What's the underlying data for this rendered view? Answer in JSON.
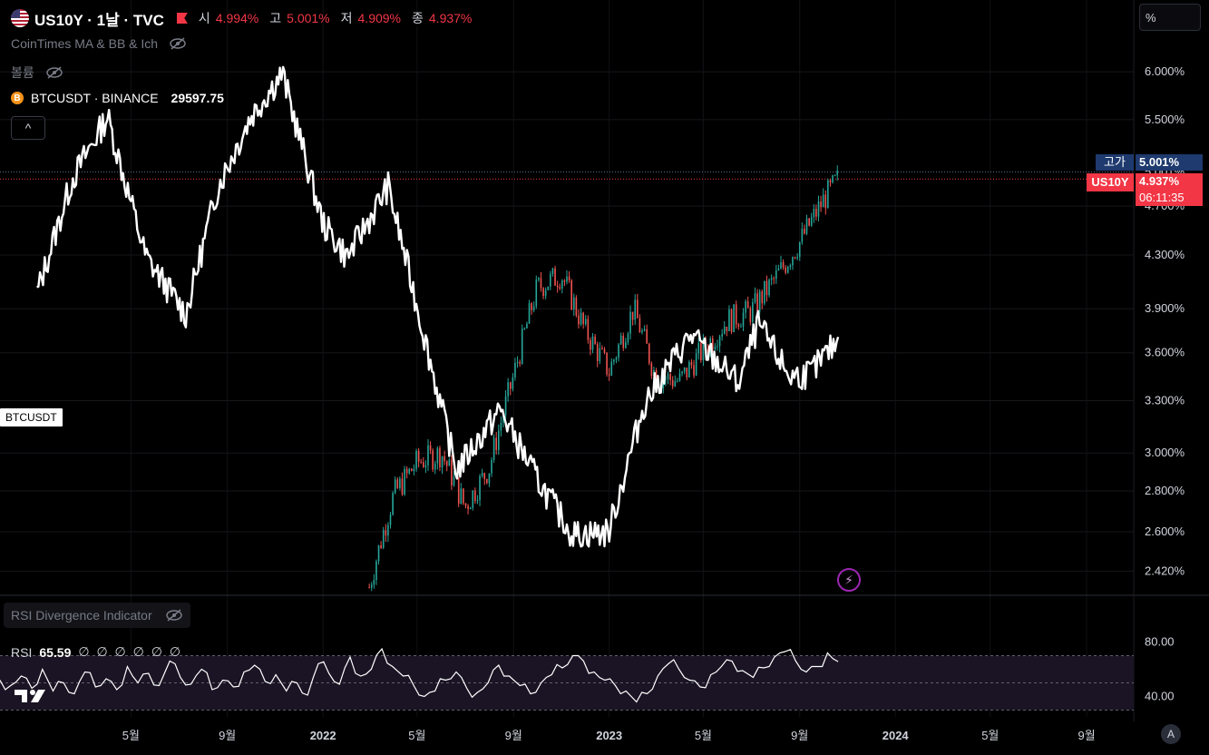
{
  "header": {
    "symbol_line": "US10Y · 1날 · TVC",
    "ohlc": [
      {
        "label": "시",
        "value": "4.994%"
      },
      {
        "label": "고",
        "value": "5.001%"
      },
      {
        "label": "저",
        "value": "4.909%"
      },
      {
        "label": "종",
        "value": "4.937%"
      }
    ]
  },
  "indicators": {
    "ma_bb_ich": "CoinTimes MA & BB & Ich",
    "volume": "볼륨",
    "rsi_div": "RSI Divergence Indicator"
  },
  "compare": {
    "icon": "B",
    "name": "BTCUSDT · BINANCE",
    "value": "29597.75",
    "line_label": "BTCUSDT"
  },
  "collapse": "^",
  "scale_mode": "%",
  "price_axis_labels": [
    "6.000%",
    "5.500%",
    "5.001%",
    "4.937%",
    "4.700%",
    "4.300%",
    "3.900%",
    "3.600%",
    "3.300%",
    "3.000%",
    "2.800%",
    "2.600%",
    "2.420%"
  ],
  "tags": {
    "high_label": "고가",
    "high_value": "5.001%",
    "symbol_tag": "US10Y",
    "last_value": "4.937%",
    "countdown": "06:11:35"
  },
  "rsi": {
    "name": "RSI",
    "value": "65.59",
    "na": "∅ ∅ ∅ ∅ ∅ ∅",
    "axis_labels": [
      "80.00",
      "40.00"
    ]
  },
  "time_axis_labels": [
    "5월",
    "9월",
    "2022",
    "5월",
    "9월",
    "2023",
    "5월",
    "9월",
    "2024",
    "5월",
    "9월"
  ],
  "auto_btn": "A",
  "colors": {
    "up": "#26a69a",
    "down": "#ef5350",
    "btc_line": "#ffffff",
    "last_price": "#f23645",
    "high_tag": "#1e3a6e",
    "rsi_band": "#1a1424"
  },
  "chart_data": [
    {
      "type": "line",
      "title": "US10Y · 1날 · TVC",
      "y_unit": "%",
      "y_scale": "log",
      "ylim": [
        2.32,
        6.4
      ],
      "series_us10y": {
        "name": "US10Y",
        "type": "candlestick",
        "x": [
          "2022-03-01",
          "2022-04-01",
          "2022-05-01",
          "2022-06-01",
          "2022-07-01",
          "2022-08-01",
          "2022-09-01",
          "2022-10-01",
          "2022-11-01",
          "2022-12-01",
          "2023-01-01",
          "2023-02-01",
          "2023-03-01",
          "2023-04-01",
          "2023-05-01",
          "2023-06-01",
          "2023-07-01",
          "2023-08-01",
          "2023-09-01",
          "2023-10-01",
          "2023-10-20"
        ],
        "close": [
          2.35,
          2.78,
          2.95,
          3.0,
          2.72,
          2.92,
          3.45,
          4.05,
          4.15,
          3.75,
          3.48,
          3.9,
          3.45,
          3.42,
          3.62,
          3.82,
          3.88,
          4.12,
          4.4,
          4.75,
          4.937
        ]
      },
      "series_btcusdt": {
        "name": "BTCUSDT",
        "type": "line",
        "x": [
          "2021-01-01",
          "2021-02-15",
          "2021-04-01",
          "2021-05-20",
          "2021-07-10",
          "2021-08-20",
          "2021-10-01",
          "2021-11-10",
          "2022-01-01",
          "2022-02-01",
          "2022-03-25",
          "2022-05-10",
          "2022-06-20",
          "2022-08-15",
          "2022-10-01",
          "2022-11-15",
          "2022-12-31",
          "2023-02-15",
          "2023-03-25",
          "2023-04-15",
          "2023-06-15",
          "2023-07-10",
          "2023-08-20",
          "2023-09-15",
          "2023-10-20"
        ],
        "values": [
          34000,
          48000,
          58000,
          38000,
          32000,
          47000,
          58000,
          66000,
          42000,
          38000,
          47000,
          30000,
          20000,
          24000,
          19500,
          16500,
          16600,
          24500,
          28000,
          30000,
          26000,
          31000,
          26500,
          26800,
          29597.75
        ]
      }
    },
    {
      "type": "line",
      "title": "RSI",
      "ylim": [
        25,
        85
      ],
      "levels": [
        70,
        50,
        30
      ],
      "series": [
        {
          "name": "RSI",
          "values": [
            52,
            48,
            55,
            46,
            60,
            44,
            50,
            42,
            58,
            47,
            53,
            45,
            62,
            50,
            57,
            48,
            66,
            54,
            49,
            60,
            45,
            52,
            47,
            58,
            63,
            51,
            56,
            44,
            50,
            41,
            64,
            57,
            49,
            69,
            55,
            60,
            75,
            62,
            55,
            48,
            40,
            44,
            52,
            58,
            46,
            43,
            50,
            63,
            55,
            48,
            42,
            50,
            56,
            61,
            70,
            66,
            58,
            52,
            48,
            44,
            36,
            42,
            55,
            64,
            60,
            52,
            47,
            56,
            62,
            66,
            59,
            54,
            61,
            69,
            73,
            66,
            58,
            62,
            72,
            65.59
          ]
        }
      ]
    }
  ]
}
